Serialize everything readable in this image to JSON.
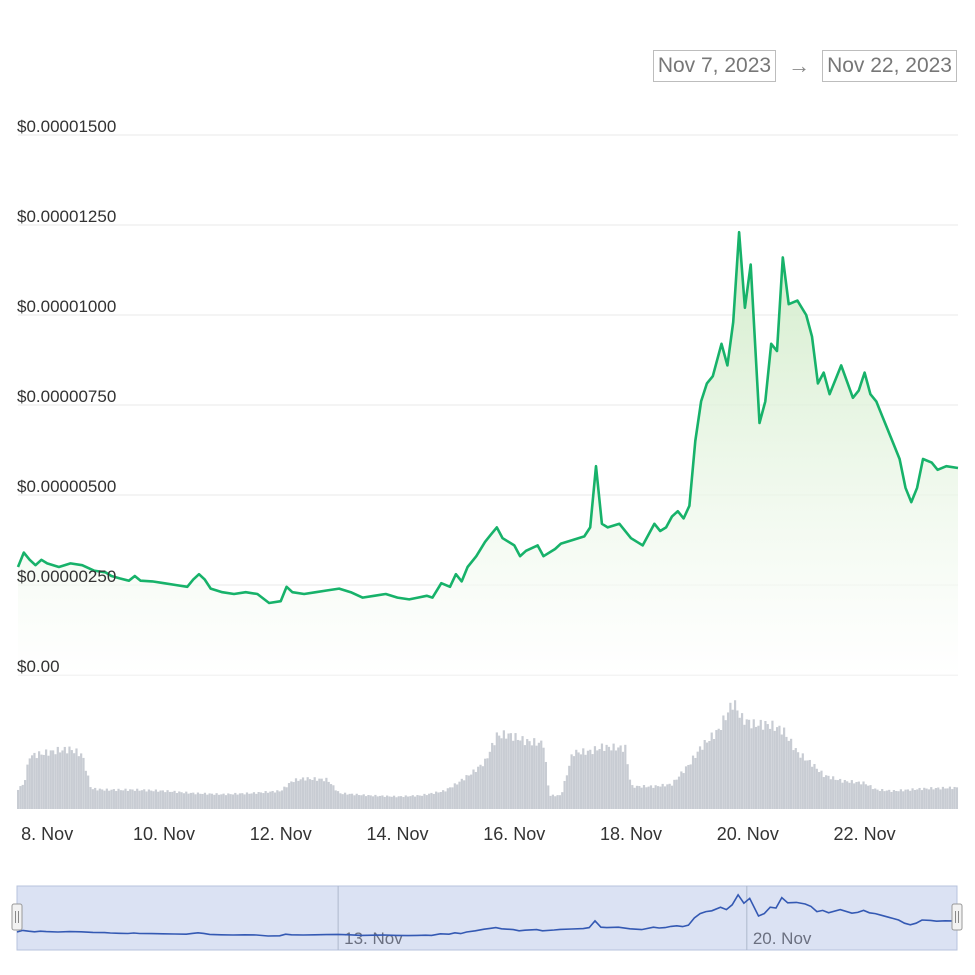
{
  "range_selector": {
    "from": "Nov 7, 2023",
    "arrow": "→",
    "to": "Nov 22, 2023"
  },
  "colors": {
    "line": "#17b26a",
    "fill_top": "#d6efcf",
    "volume": "#c8ccd3",
    "navigator_fill": "#dbe2f3",
    "navigator_line": "#3459b3",
    "grid": "#e9e9e9"
  },
  "chart_data": {
    "type": "line",
    "title": "",
    "ylim": [
      0,
      1.5e-05
    ],
    "y_ticks": [
      {
        "value": 1.5e-05,
        "label": "$0.00001500"
      },
      {
        "value": 1.25e-05,
        "label": "$0.00001250"
      },
      {
        "value": 1e-05,
        "label": "$0.00001000"
      },
      {
        "value": 7.5e-06,
        "label": "$0.00000750"
      },
      {
        "value": 5e-06,
        "label": "$0.00000500"
      },
      {
        "value": 2.5e-06,
        "label": "$0.00000250"
      },
      {
        "value": 0,
        "label": "$0.00"
      }
    ],
    "x_ticks": [
      {
        "day": 8,
        "label": "8. Nov"
      },
      {
        "day": 10,
        "label": "10. Nov"
      },
      {
        "day": 12,
        "label": "12. Nov"
      },
      {
        "day": 14,
        "label": "14. Nov"
      },
      {
        "day": 16,
        "label": "16. Nov"
      },
      {
        "day": 18,
        "label": "18. Nov"
      },
      {
        "day": 20,
        "label": "20. Nov"
      },
      {
        "day": 22,
        "label": "22. Nov"
      }
    ],
    "navigator_ticks": [
      {
        "day": 13,
        "label": "13. Nov"
      },
      {
        "day": 20,
        "label": "20. Nov"
      }
    ],
    "series": [
      {
        "values": [
          [
            7.5,
            3e-06
          ],
          [
            7.6,
            3.4e-06
          ],
          [
            7.7,
            3.2e-06
          ],
          [
            7.8,
            3.05e-06
          ],
          [
            7.9,
            3.2e-06
          ],
          [
            8.0,
            3.1e-06
          ],
          [
            8.2,
            3e-06
          ],
          [
            8.4,
            3.1e-06
          ],
          [
            8.6,
            3.05e-06
          ],
          [
            8.8,
            2.9e-06
          ],
          [
            9.0,
            2.85e-06
          ],
          [
            9.1,
            2.75e-06
          ],
          [
            9.25,
            2.68e-06
          ],
          [
            9.4,
            2.62e-06
          ],
          [
            9.5,
            2.75e-06
          ],
          [
            9.6,
            2.62e-06
          ],
          [
            9.8,
            2.6e-06
          ],
          [
            10.0,
            2.55e-06
          ],
          [
            10.2,
            2.5e-06
          ],
          [
            10.4,
            2.45e-06
          ],
          [
            10.5,
            2.65e-06
          ],
          [
            10.6,
            2.8e-06
          ],
          [
            10.7,
            2.65e-06
          ],
          [
            10.8,
            2.4e-06
          ],
          [
            11.0,
            2.3e-06
          ],
          [
            11.2,
            2.25e-06
          ],
          [
            11.4,
            2.3e-06
          ],
          [
            11.6,
            2.25e-06
          ],
          [
            11.8,
            2e-06
          ],
          [
            12.0,
            2.05e-06
          ],
          [
            12.1,
            2.45e-06
          ],
          [
            12.2,
            2.3e-06
          ],
          [
            12.4,
            2.25e-06
          ],
          [
            12.6,
            2.3e-06
          ],
          [
            12.8,
            2.35e-06
          ],
          [
            13.0,
            2.4e-06
          ],
          [
            13.2,
            2.3e-06
          ],
          [
            13.4,
            2.15e-06
          ],
          [
            13.6,
            2.2e-06
          ],
          [
            13.8,
            2.25e-06
          ],
          [
            14.0,
            2.15e-06
          ],
          [
            14.2,
            2.1e-06
          ],
          [
            14.35,
            2.15e-06
          ],
          [
            14.5,
            2.2e-06
          ],
          [
            14.6,
            2.15e-06
          ],
          [
            14.75,
            2.55e-06
          ],
          [
            14.9,
            2.45e-06
          ],
          [
            15.0,
            2.8e-06
          ],
          [
            15.1,
            2.6e-06
          ],
          [
            15.2,
            3e-06
          ],
          [
            15.35,
            3.3e-06
          ],
          [
            15.5,
            3.7e-06
          ],
          [
            15.6,
            3.9e-06
          ],
          [
            15.7,
            4.1e-06
          ],
          [
            15.8,
            3.8e-06
          ],
          [
            16.0,
            3.6e-06
          ],
          [
            16.1,
            3.3e-06
          ],
          [
            16.2,
            3.45e-06
          ],
          [
            16.4,
            3.6e-06
          ],
          [
            16.5,
            3.3e-06
          ],
          [
            16.7,
            3.5e-06
          ],
          [
            16.8,
            3.65e-06
          ],
          [
            17.0,
            3.75e-06
          ],
          [
            17.2,
            3.85e-06
          ],
          [
            17.3,
            4.1e-06
          ],
          [
            17.4,
            5.8e-06
          ],
          [
            17.5,
            4.2e-06
          ],
          [
            17.6,
            4.1e-06
          ],
          [
            17.8,
            4.2e-06
          ],
          [
            18.0,
            3.8e-06
          ],
          [
            18.1,
            3.7e-06
          ],
          [
            18.2,
            3.6e-06
          ],
          [
            18.4,
            4.2e-06
          ],
          [
            18.5,
            4e-06
          ],
          [
            18.6,
            4.1e-06
          ],
          [
            18.7,
            4.4e-06
          ],
          [
            18.8,
            4.55e-06
          ],
          [
            18.9,
            4.35e-06
          ],
          [
            19.0,
            4.7e-06
          ],
          [
            19.1,
            6.5e-06
          ],
          [
            19.2,
            7.6e-06
          ],
          [
            19.3,
            8.1e-06
          ],
          [
            19.4,
            8.3e-06
          ],
          [
            19.55,
            9.2e-06
          ],
          [
            19.65,
            8.6e-06
          ],
          [
            19.75,
            9.8e-06
          ],
          [
            19.85,
            1.23e-05
          ],
          [
            19.95,
            1.02e-05
          ],
          [
            20.05,
            1.14e-05
          ],
          [
            20.2,
            7e-06
          ],
          [
            20.3,
            7.6e-06
          ],
          [
            20.4,
            9.2e-06
          ],
          [
            20.5,
            9e-06
          ],
          [
            20.6,
            1.16e-05
          ],
          [
            20.7,
            1.03e-05
          ],
          [
            20.85,
            1.04e-05
          ],
          [
            21.0,
            1e-05
          ],
          [
            21.1,
            9.4e-06
          ],
          [
            21.2,
            8.1e-06
          ],
          [
            21.3,
            8.4e-06
          ],
          [
            21.4,
            7.8e-06
          ],
          [
            21.6,
            8.6e-06
          ],
          [
            21.8,
            7.7e-06
          ],
          [
            21.9,
            7.9e-06
          ],
          [
            22.0,
            8.4e-06
          ],
          [
            22.1,
            7.8e-06
          ],
          [
            22.2,
            7.6e-06
          ],
          [
            22.3,
            7.2e-06
          ],
          [
            22.5,
            6.4e-06
          ],
          [
            22.6,
            6e-06
          ],
          [
            22.7,
            5.2e-06
          ],
          [
            22.8,
            4.8e-06
          ],
          [
            22.9,
            5.2e-06
          ],
          [
            23.0,
            6e-06
          ],
          [
            23.15,
            5.9e-06
          ],
          [
            23.25,
            5.7e-06
          ],
          [
            23.4,
            5.8e-06
          ],
          [
            23.6,
            5.75e-06
          ]
        ]
      }
    ],
    "volume_relative": [
      [
        7.5,
        0.18
      ],
      [
        7.6,
        0.22
      ],
      [
        7.7,
        0.47
      ],
      [
        8.0,
        0.5
      ],
      [
        8.2,
        0.52
      ],
      [
        8.4,
        0.53
      ],
      [
        8.6,
        0.48
      ],
      [
        8.75,
        0.18
      ],
      [
        9.0,
        0.17
      ],
      [
        9.5,
        0.17
      ],
      [
        10.0,
        0.16
      ],
      [
        10.5,
        0.14
      ],
      [
        11.0,
        0.13
      ],
      [
        11.5,
        0.14
      ],
      [
        12.0,
        0.16
      ],
      [
        12.2,
        0.25
      ],
      [
        12.4,
        0.27
      ],
      [
        12.8,
        0.26
      ],
      [
        13.0,
        0.14
      ],
      [
        13.5,
        0.12
      ],
      [
        14.0,
        0.11
      ],
      [
        14.4,
        0.12
      ],
      [
        14.8,
        0.16
      ],
      [
        15.0,
        0.22
      ],
      [
        15.3,
        0.33
      ],
      [
        15.5,
        0.42
      ],
      [
        15.7,
        0.65
      ],
      [
        15.9,
        0.66
      ],
      [
        16.2,
        0.6
      ],
      [
        16.5,
        0.58
      ],
      [
        16.6,
        0.12
      ],
      [
        16.8,
        0.12
      ],
      [
        17.0,
        0.5
      ],
      [
        17.3,
        0.51
      ],
      [
        17.5,
        0.55
      ],
      [
        17.9,
        0.54
      ],
      [
        18.0,
        0.2
      ],
      [
        18.4,
        0.2
      ],
      [
        18.7,
        0.22
      ],
      [
        19.0,
        0.4
      ],
      [
        19.2,
        0.55
      ],
      [
        19.5,
        0.7
      ],
      [
        19.75,
        0.95
      ],
      [
        19.9,
        0.8
      ],
      [
        20.1,
        0.75
      ],
      [
        20.35,
        0.75
      ],
      [
        20.6,
        0.7
      ],
      [
        20.85,
        0.5
      ],
      [
        21.1,
        0.4
      ],
      [
        21.3,
        0.3
      ],
      [
        21.6,
        0.25
      ],
      [
        22.0,
        0.23
      ],
      [
        22.2,
        0.17
      ],
      [
        22.5,
        0.16
      ],
      [
        23.0,
        0.18
      ],
      [
        23.6,
        0.19
      ]
    ]
  }
}
